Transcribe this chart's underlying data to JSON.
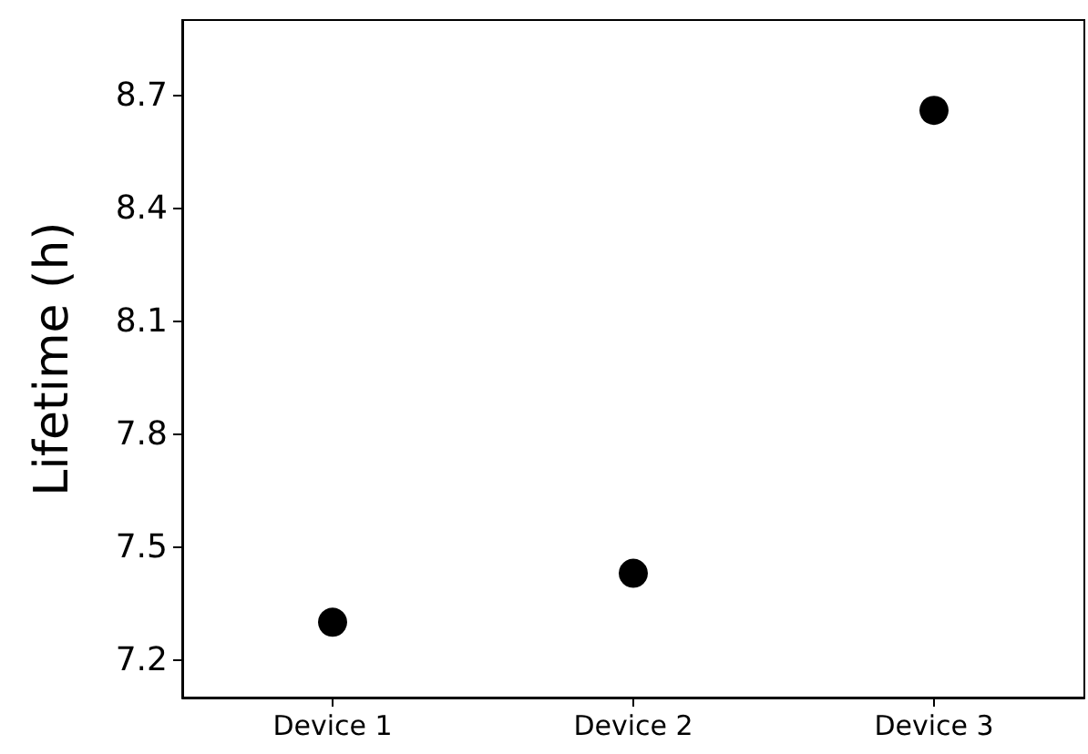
{
  "chart_data": {
    "type": "scatter",
    "ylabel": "Lifetime (h)",
    "categories": [
      "Device 1",
      "Device 2",
      "Device 3"
    ],
    "series": [
      {
        "color": "#000000",
        "values": [
          7.3,
          7.43,
          8.66
        ]
      }
    ],
    "ylim": [
      7.1,
      8.9
    ],
    "yticks": [
      7.2,
      7.5,
      7.8,
      8.1,
      8.4,
      8.7
    ],
    "grid": false,
    "marker": "circle"
  }
}
